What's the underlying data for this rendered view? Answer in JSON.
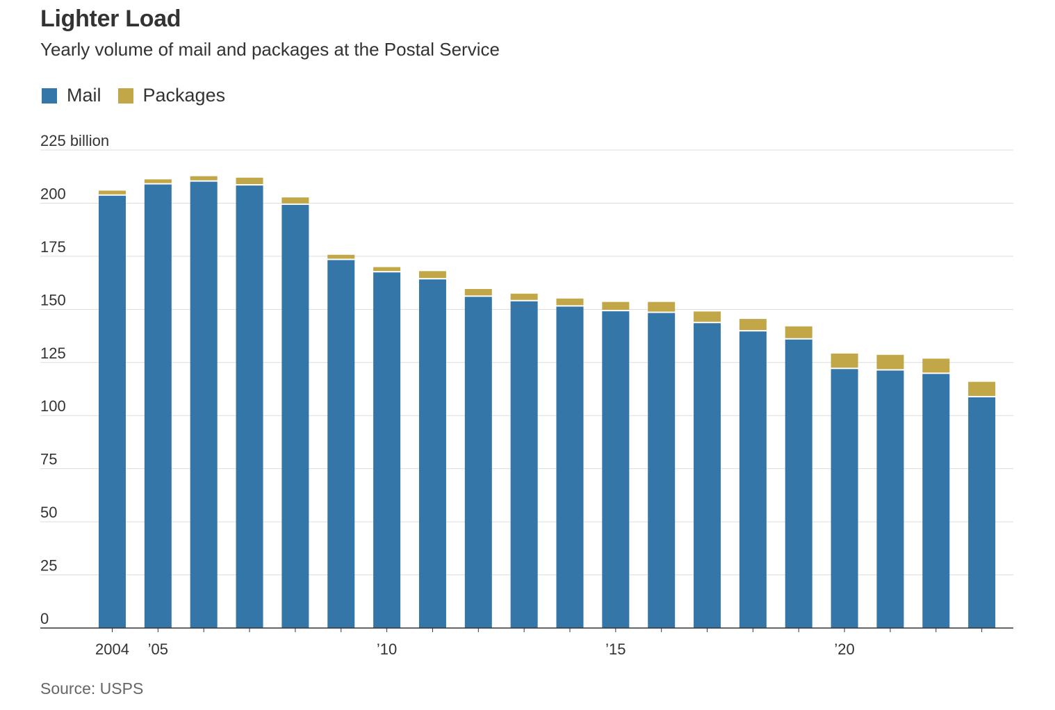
{
  "header": {
    "title": "Lighter Load",
    "subtitle": "Yearly volume of mail and packages at the Postal Service"
  },
  "legend": {
    "items": [
      {
        "label": "Mail",
        "color": "#3476a8"
      },
      {
        "label": "Packages",
        "color": "#c1a748"
      }
    ]
  },
  "footer": {
    "source": "Source: USPS"
  },
  "chart_data": {
    "type": "bar",
    "stacked": true,
    "title": "Lighter Load",
    "subtitle": "Yearly volume of mail and packages at the Postal Service",
    "xlabel": "",
    "ylabel": "",
    "ylim": [
      0,
      225
    ],
    "y_ticks": [
      0,
      25,
      50,
      75,
      100,
      125,
      150,
      175,
      200,
      225
    ],
    "y_tick_labels": [
      "0",
      "25",
      "50",
      "75",
      "100",
      "125",
      "150",
      "175",
      "200",
      "225 billion"
    ],
    "categories": [
      "2004",
      "2005",
      "2006",
      "2007",
      "2008",
      "2009",
      "2010",
      "2011",
      "2012",
      "2013",
      "2014",
      "2015",
      "2016",
      "2017",
      "2018",
      "2019",
      "2020",
      "2021",
      "2022",
      "2023"
    ],
    "x_tick_labels": {
      "2004": "2004",
      "2005": "’05",
      "2010": "’10",
      "2015": "’15",
      "2020": "’20"
    },
    "series": [
      {
        "name": "Mail",
        "color": "#3476a8",
        "values": [
          203.5,
          208.8,
          210.1,
          208.3,
          199.2,
          173.2,
          167.4,
          164.1,
          155.9,
          153.8,
          151.3,
          149.1,
          148.3,
          143.5,
          139.6,
          135.8,
          121.9,
          121.2,
          119.6,
          108.6
        ]
      },
      {
        "name": "Packages",
        "color": "#c1a748",
        "values": [
          2.4,
          2.4,
          2.6,
          3.7,
          3.5,
          2.5,
          2.5,
          3.9,
          3.7,
          3.6,
          3.8,
          4.4,
          5.2,
          5.5,
          5.9,
          6.2,
          7.3,
          7.4,
          7.2,
          7.3
        ]
      }
    ],
    "grid": true,
    "legend_position": "top-left"
  }
}
